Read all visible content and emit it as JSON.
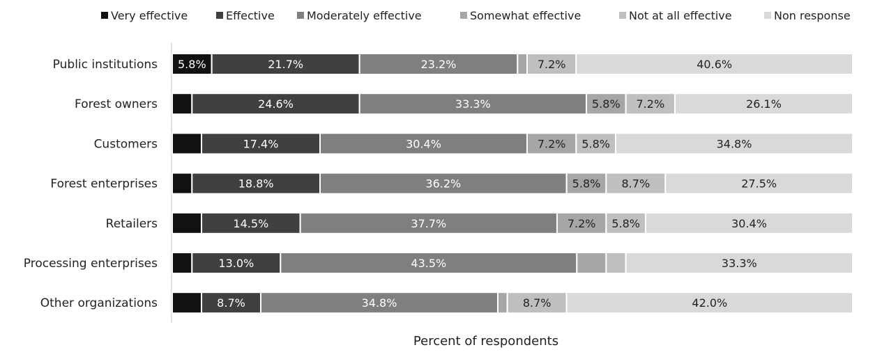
{
  "chart_data": {
    "type": "bar",
    "orientation": "horizontal",
    "stacked": "100%",
    "xlabel": "Percent of respondents",
    "ylabel": "",
    "categories": [
      "Public institutions",
      "Forest owners",
      "Customers",
      "Forest enterprises",
      "Retailers",
      "Processing enterprises",
      "Other organizations"
    ],
    "series": [
      {
        "name": "Very effective",
        "color": "#111111",
        "values": [
          5.8,
          2.9,
          4.3,
          2.9,
          4.3,
          2.9,
          4.3
        ]
      },
      {
        "name": "Effective",
        "color": "#404040",
        "values": [
          21.7,
          24.6,
          17.4,
          18.8,
          14.5,
          13.0,
          8.7
        ]
      },
      {
        "name": "Moderately effective",
        "color": "#7f7f7f",
        "values": [
          23.2,
          33.3,
          30.4,
          36.2,
          37.7,
          43.5,
          34.8
        ]
      },
      {
        "name": "Somewhat effective",
        "color": "#a6a6a6",
        "values": [
          1.4,
          5.8,
          7.2,
          5.8,
          7.2,
          4.3,
          1.4
        ]
      },
      {
        "name": "Not at all effective",
        "color": "#bfbfbf",
        "values": [
          7.2,
          7.2,
          5.8,
          8.7,
          5.8,
          2.9,
          8.7
        ]
      },
      {
        "name": "Non response",
        "color": "#d9d9d9",
        "values": [
          40.6,
          26.1,
          34.8,
          27.5,
          30.4,
          33.3,
          42.0
        ]
      }
    ],
    "data_labels": [
      [
        "5.8%",
        "21.7%",
        "23.2%",
        "",
        "7.2%",
        "40.6%"
      ],
      [
        "",
        "24.6%",
        "33.3%",
        "5.8%",
        "7.2%",
        "26.1%"
      ],
      [
        "",
        "17.4%",
        "30.4%",
        "7.2%",
        "5.8%",
        "34.8%"
      ],
      [
        "",
        "18.8%",
        "36.2%",
        "5.8%",
        "8.7%",
        "27.5%"
      ],
      [
        "",
        "14.5%",
        "37.7%",
        "7.2%",
        "5.8%",
        "30.4%"
      ],
      [
        "",
        "13.0%",
        "43.5%",
        "",
        "",
        "33.3%"
      ],
      [
        "",
        "8.7%",
        "34.8%",
        "",
        "8.7%",
        "42.0%"
      ]
    ],
    "legend_position": "top",
    "grid": false
  }
}
